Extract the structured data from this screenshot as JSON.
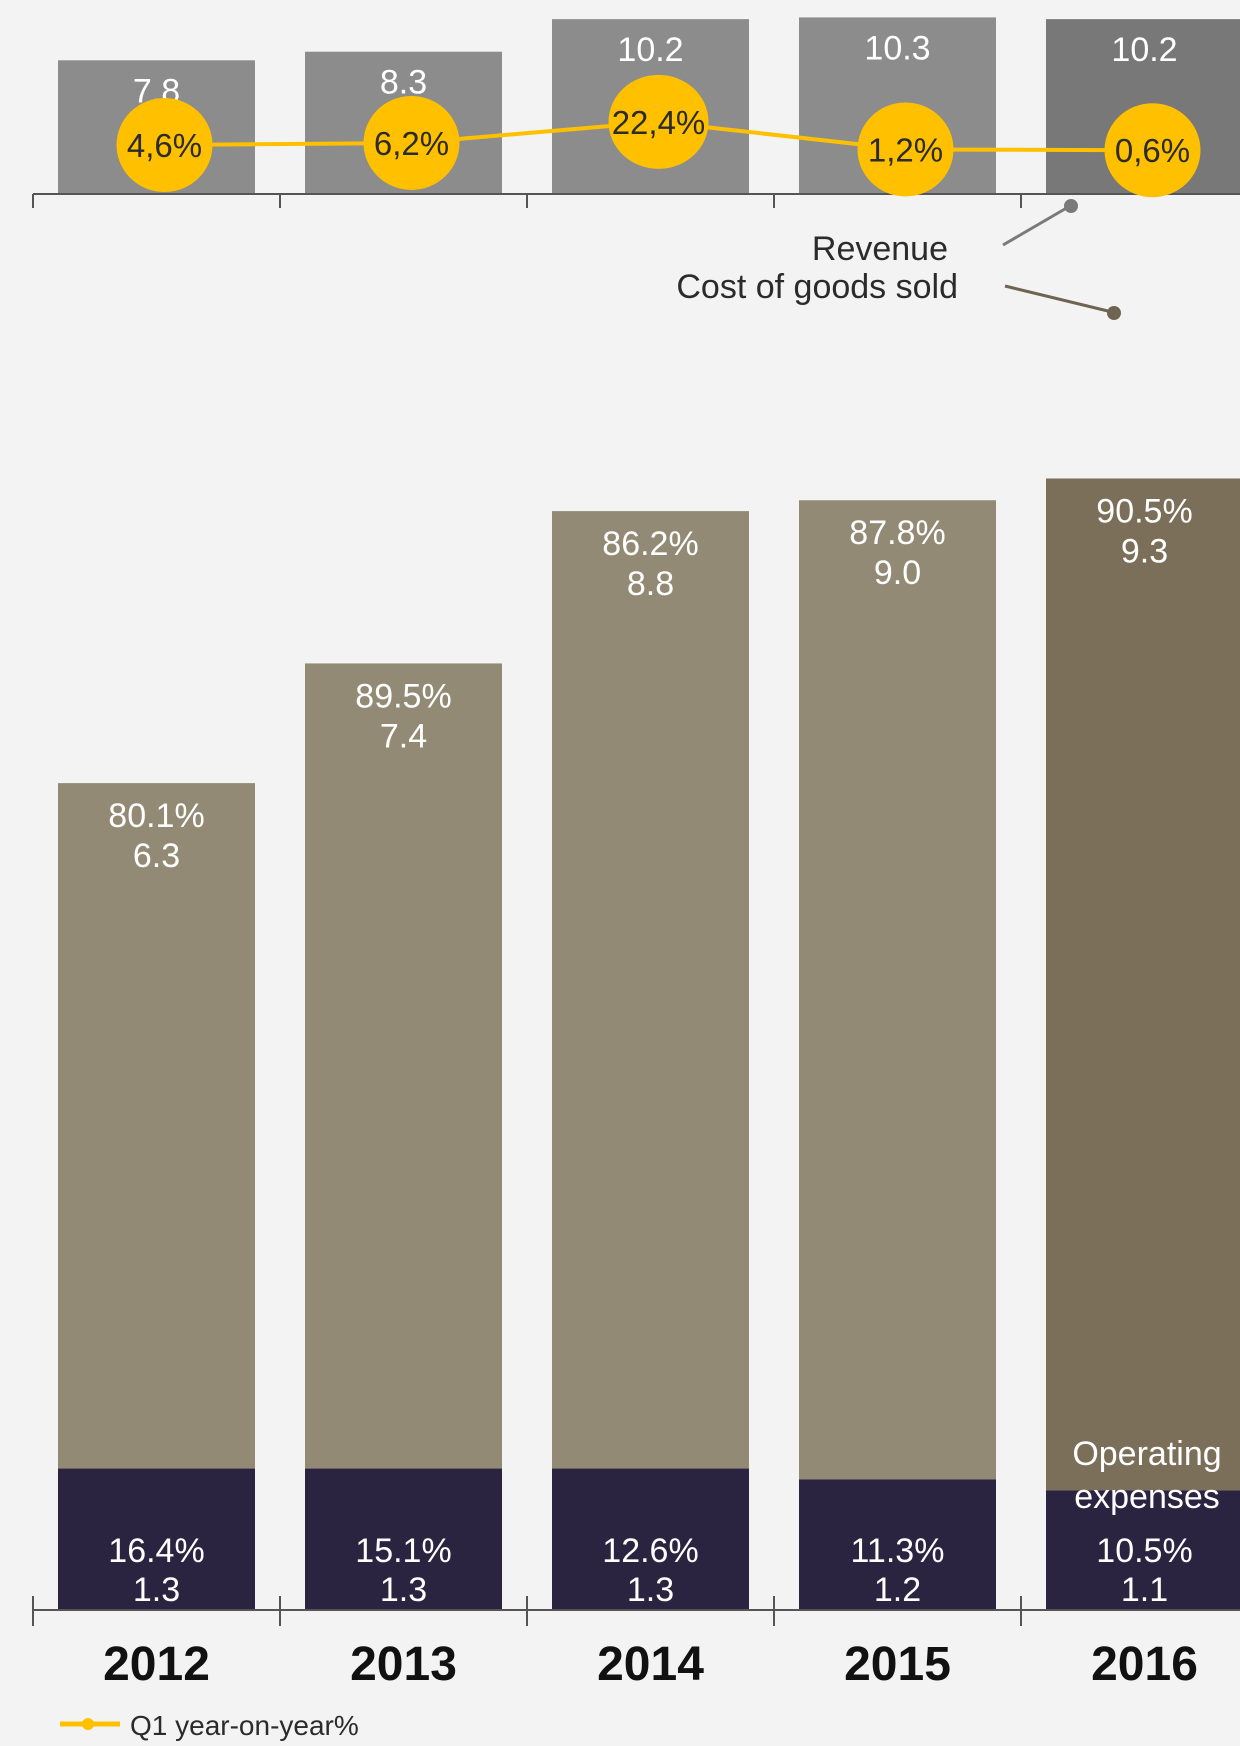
{
  "chart_data": {
    "type": "bar",
    "categories": [
      "2012",
      "2013",
      "2014",
      "2015",
      "2016"
    ],
    "revenue": {
      "label": "Revenue",
      "values": [
        7.8,
        8.3,
        10.2,
        10.3,
        10.2
      ],
      "value_labels": [
        "7.8",
        "8.3",
        "10.2",
        "10.3",
        "10.2"
      ]
    },
    "yoy": {
      "legend_label": "Q1 year-on-year%",
      "values": [
        4.6,
        6.2,
        22.4,
        1.2,
        0.6
      ],
      "labels": [
        "4,6%",
        "6,2%",
        "22,4%",
        "1,2%",
        "0,6%"
      ]
    },
    "cogs": {
      "label": "Cost of goods sold",
      "values": [
        6.3,
        7.4,
        8.8,
        9.0,
        9.3
      ],
      "value_labels": [
        "6.3",
        "7.4",
        "8.8",
        "9.0",
        "9.3"
      ],
      "percent_labels": [
        "80.1%",
        "89.5%",
        "86.2%",
        "87.8%",
        "90.5%"
      ]
    },
    "opex": {
      "label_line1": "Operating",
      "label_line2": "expenses",
      "values": [
        1.3,
        1.3,
        1.3,
        1.2,
        1.1
      ],
      "value_labels": [
        "1.3",
        "1.3",
        "1.3",
        "1.2",
        "1.1"
      ],
      "percent_labels": [
        "16.4%",
        "15.1%",
        "12.6%",
        "11.3%",
        "10.5%"
      ]
    },
    "colors": {
      "revenue": "#8c8c8c",
      "revenue_highlight": "#787878",
      "cogs": "#928a75",
      "cogs_highlight": "#7b6f5a",
      "opex": "#2a2440",
      "line": "#ffc000",
      "axis": "#555555",
      "leader_revenue": "#7a7a7a",
      "leader_cogs": "#6f6452"
    },
    "bottom_ylim": [
      0,
      10
    ],
    "top_ylim": [
      0,
      10.5
    ]
  }
}
